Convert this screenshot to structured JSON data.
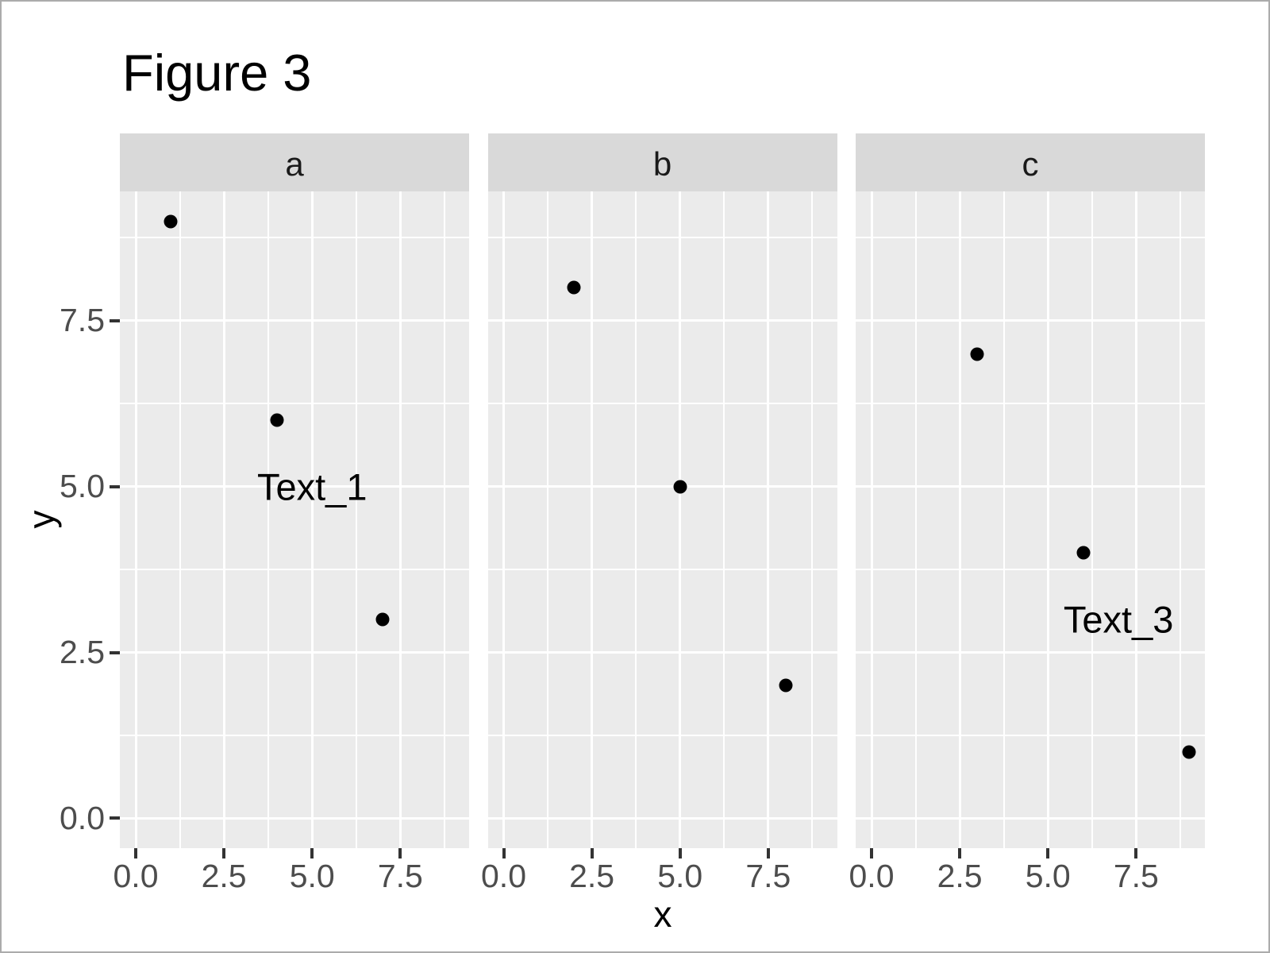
{
  "title": "Figure 3",
  "axes": {
    "x_label": "x",
    "y_label": "y",
    "x_tick_labels": [
      "0.0",
      "2.5",
      "5.0",
      "7.5"
    ],
    "y_tick_labels": [
      "0.0",
      "2.5",
      "5.0",
      "7.5"
    ]
  },
  "chart_data": {
    "type": "scatter",
    "title": "Figure 3",
    "xlabel": "x",
    "ylabel": "y",
    "xlim": [
      -0.45,
      9.45
    ],
    "ylim": [
      -0.45,
      9.45
    ],
    "x_major_ticks": [
      0,
      2.5,
      5,
      7.5
    ],
    "y_major_ticks": [
      0,
      2.5,
      5,
      7.5
    ],
    "x_minor_ticks": [
      1.25,
      3.75,
      6.25,
      8.75
    ],
    "y_minor_ticks": [
      1.25,
      3.75,
      6.25,
      8.75
    ],
    "grid": true,
    "legend_position": "none",
    "facets": [
      {
        "label": "a",
        "points": [
          {
            "x": 1,
            "y": 9
          },
          {
            "x": 4,
            "y": 6
          },
          {
            "x": 7,
            "y": 3
          }
        ],
        "annotations": [
          {
            "x": 5,
            "y": 5,
            "text": "Text_1"
          }
        ]
      },
      {
        "label": "b",
        "points": [
          {
            "x": 2,
            "y": 8
          },
          {
            "x": 5,
            "y": 5
          },
          {
            "x": 8,
            "y": 2
          }
        ],
        "annotations": []
      },
      {
        "label": "c",
        "points": [
          {
            "x": 3,
            "y": 7
          },
          {
            "x": 6,
            "y": 4
          },
          {
            "x": 9,
            "y": 1
          }
        ],
        "annotations": [
          {
            "x": 7,
            "y": 3,
            "text": "Text_3"
          }
        ]
      }
    ]
  },
  "colors": {
    "background": "#FFFFFF",
    "frame": "#ABABAB",
    "panel_background": "#EBEBEB",
    "strip_background": "#D9D9D9",
    "gridline": "#FFFFFF",
    "point": "#000000",
    "axis_text": "#4D4D4D",
    "axis_title": "#000000",
    "strip_text": "#1A1A1A",
    "plot_title": "#000000",
    "annotation_text": "#000000",
    "tick_mark": "#333333"
  }
}
